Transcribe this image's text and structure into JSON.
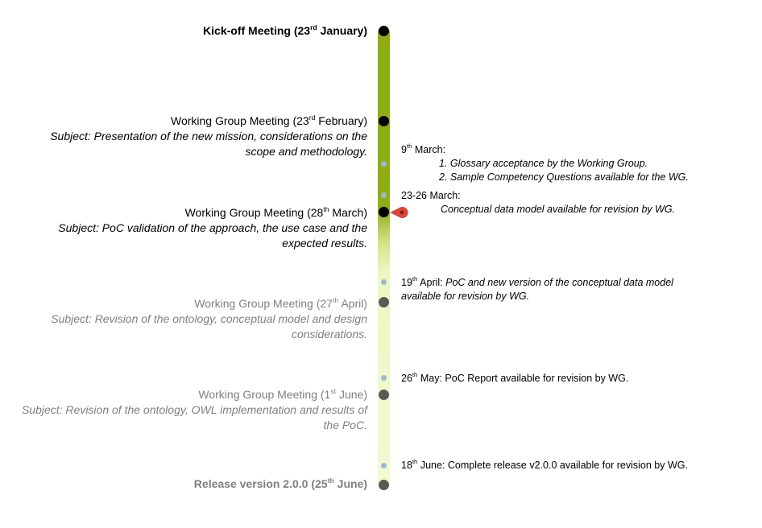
{
  "milestones": [
    {
      "title_pre": "Kick-off Meeting (23",
      "title_sup": "rd",
      "title_post": " January)",
      "subject": ""
    },
    {
      "title_pre": "Working Group Meeting (23",
      "title_sup": "rd",
      "title_post": " February)",
      "subject": "Subject: Presentation of the new mission, considerations on the scope and methodology."
    },
    {
      "title_pre": "Working Group Meeting (28",
      "title_sup": "th",
      "title_post": " March)",
      "subject": "Subject: PoC validation of the approach, the use case and the expected results."
    },
    {
      "title_pre": "Working Group Meeting (27",
      "title_sup": "th",
      "title_post": " April)",
      "subject": "Subject: Revision of the ontology, conceptual model and design considerations."
    },
    {
      "title_pre": "Working Group Meeting (1",
      "title_sup": "st",
      "title_post": " June)",
      "subject": "Subject: Revision of the ontology, OWL implementation and results of the PoC."
    },
    {
      "title_pre": "Release version 2.0.0 (25",
      "title_sup": "th",
      "title_post": " June)",
      "subject": ""
    }
  ],
  "events": [
    {
      "date_pre": "9",
      "date_sup": "th",
      "date_post": " March:",
      "items": [
        "1. Glossary acceptance by the Working Group.",
        "2. Sample Competency Questions available for the WG."
      ]
    },
    {
      "date": "23-26  March:",
      "detail": "Conceptual data model available for revision by WG."
    },
    {
      "date_pre": "19",
      "date_sup": "th",
      "date_post": "  April: ",
      "detail_line1": "PoC and new version of the conceptual data model",
      "detail_line2": "available for revision by WG."
    },
    {
      "date_pre": "26",
      "date_sup": "th",
      "date_post": "  May: ",
      "detail": "PoC Report available for revision by WG."
    },
    {
      "date_pre": "18",
      "date_sup": "th",
      "date_post": "  June: ",
      "detail": "Complete release v2.0.0 available for revision by WG."
    }
  ],
  "colors": {
    "timeline_done": "#8fad15",
    "timeline_future": "#f3f9d1",
    "current_marker": "#d9453a",
    "minor_dot": "#9ab8d8"
  }
}
